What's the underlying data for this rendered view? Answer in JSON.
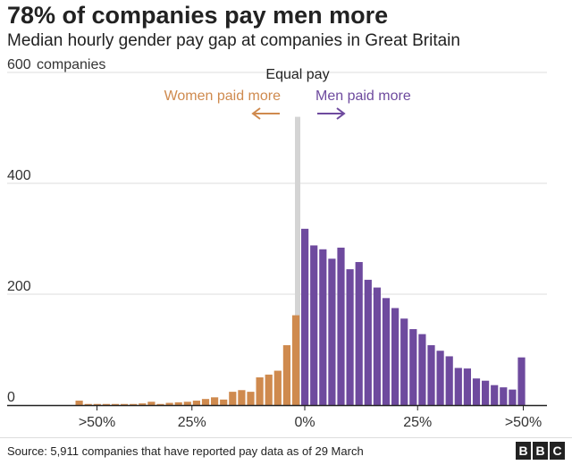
{
  "chart_data": {
    "type": "bar",
    "title": "78% of companies pay men more",
    "subtitle": "Median hourly gender pay gap at companies in Great Britain",
    "ylabel": "companies",
    "ylim": [
      0,
      600
    ],
    "yticks": [
      {
        "value": 0,
        "label": "0"
      },
      {
        "value": 200,
        "label": "200"
      },
      {
        "value": 400,
        "label": "400"
      },
      {
        "value": 600,
        "label": "600"
      }
    ],
    "xticks": [
      {
        "value": -50,
        "label": ">50%"
      },
      {
        "value": -25,
        "label": "25%"
      },
      {
        "value": 0,
        "label": "0%"
      },
      {
        "value": 25,
        "label": "25%"
      },
      {
        "value": 50,
        "label": ">50%"
      }
    ],
    "equal_pay_label": "Equal pay",
    "equal_pay_value": 520,
    "annotations": {
      "women": "Women paid more",
      "men": "Men paid more"
    },
    "colors": {
      "women": "#cf8a4e",
      "men": "#6e4a9e",
      "equal": "#d4d4d4",
      "axis": "#222222",
      "grid": "#dddddd"
    },
    "series": [
      {
        "name": "Women paid more",
        "x": [
          -50,
          -48,
          -46,
          -44,
          -42,
          -40,
          -38,
          -36,
          -34,
          -32,
          -30,
          -28,
          -26,
          -24,
          -22,
          -20,
          -18,
          -16,
          -14,
          -12,
          -10,
          -8,
          -6,
          -4,
          -2
        ],
        "values": [
          8,
          2,
          2,
          2,
          2,
          2,
          2,
          3,
          6,
          2,
          4,
          5,
          6,
          8,
          11,
          14,
          10,
          24,
          27,
          24,
          50,
          55,
          62,
          108,
          162
        ]
      },
      {
        "name": "Men paid more",
        "x": [
          0,
          2,
          4,
          6,
          8,
          10,
          12,
          14,
          16,
          18,
          20,
          22,
          24,
          26,
          28,
          30,
          32,
          34,
          36,
          38,
          40,
          42,
          44,
          46,
          48,
          50
        ],
        "values": [
          318,
          288,
          281,
          264,
          284,
          245,
          258,
          226,
          212,
          193,
          175,
          156,
          137,
          128,
          108,
          98,
          88,
          67,
          66,
          48,
          44,
          36,
          32,
          28,
          86,
          0
        ]
      }
    ]
  },
  "footer": {
    "source": "Source: 5,911 companies that have reported pay data as of 29 March",
    "logo_letters": [
      "B",
      "B",
      "C"
    ]
  }
}
